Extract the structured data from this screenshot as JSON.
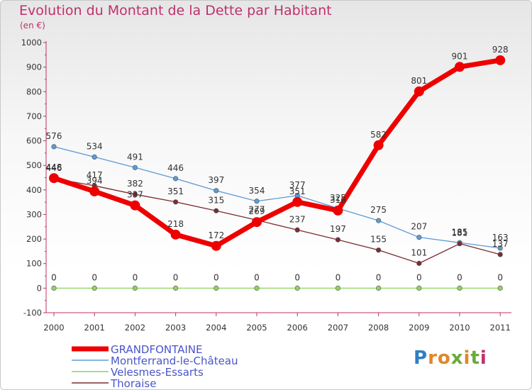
{
  "chart_data": {
    "type": "line",
    "title": "Evolution du Montant de la Dette par Habitant",
    "subtitle": "(en €)",
    "x": [
      "2000",
      "2001",
      "2002",
      "2003",
      "2004",
      "2005",
      "2006",
      "2007",
      "2008",
      "2009",
      "2010",
      "2011"
    ],
    "ylim": [
      -100,
      1000
    ],
    "yticks": [
      -100,
      0,
      100,
      200,
      300,
      400,
      500,
      600,
      700,
      800,
      900,
      1000
    ],
    "grid": false,
    "legend_position": "bottom-left",
    "series": [
      {
        "name": "GRANDFONTAINE",
        "color": "#ee0000",
        "values": [
          448,
          394,
          337,
          218,
          172,
          269,
          351,
          316,
          582,
          801,
          901,
          928
        ]
      },
      {
        "name": "Montferrand-le-Château",
        "color": "#5b9bd5",
        "values": [
          576,
          534,
          491,
          446,
          397,
          354,
          377,
          325,
          275,
          207,
          185,
          163
        ]
      },
      {
        "name": "Velesmes-Essarts",
        "color": "#8ed460",
        "values": [
          0,
          0,
          0,
          0,
          0,
          0,
          0,
          0,
          0,
          0,
          0,
          0
        ]
      },
      {
        "name": "Thoraise",
        "color": "#7a2e32",
        "values": [
          446,
          417,
          382,
          351,
          315,
          277,
          237,
          197,
          155,
          101,
          181,
          137
        ]
      }
    ]
  },
  "logo": {
    "letters": [
      "P",
      "r",
      "o",
      "x",
      "i",
      "t",
      "i"
    ]
  }
}
